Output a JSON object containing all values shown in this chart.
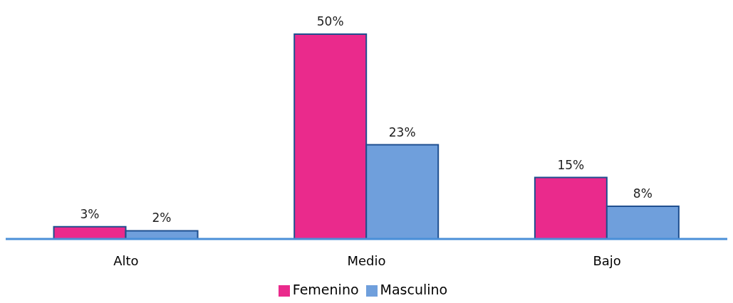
{
  "chart_data": {
    "type": "bar",
    "categories": [
      "Alto",
      "Medio",
      "Bajo"
    ],
    "series": [
      {
        "name": "Femenino",
        "color": "#ea2a8c",
        "values": [
          3,
          50,
          15
        ],
        "value_labels": [
          "3%",
          "50%",
          "15%"
        ]
      },
      {
        "name": "Masculino",
        "color": "#6f9fdc",
        "values": [
          2,
          23,
          8
        ],
        "value_labels": [
          "2%",
          "23%",
          "8%"
        ]
      }
    ],
    "legend": "bottom",
    "grid": false
  }
}
